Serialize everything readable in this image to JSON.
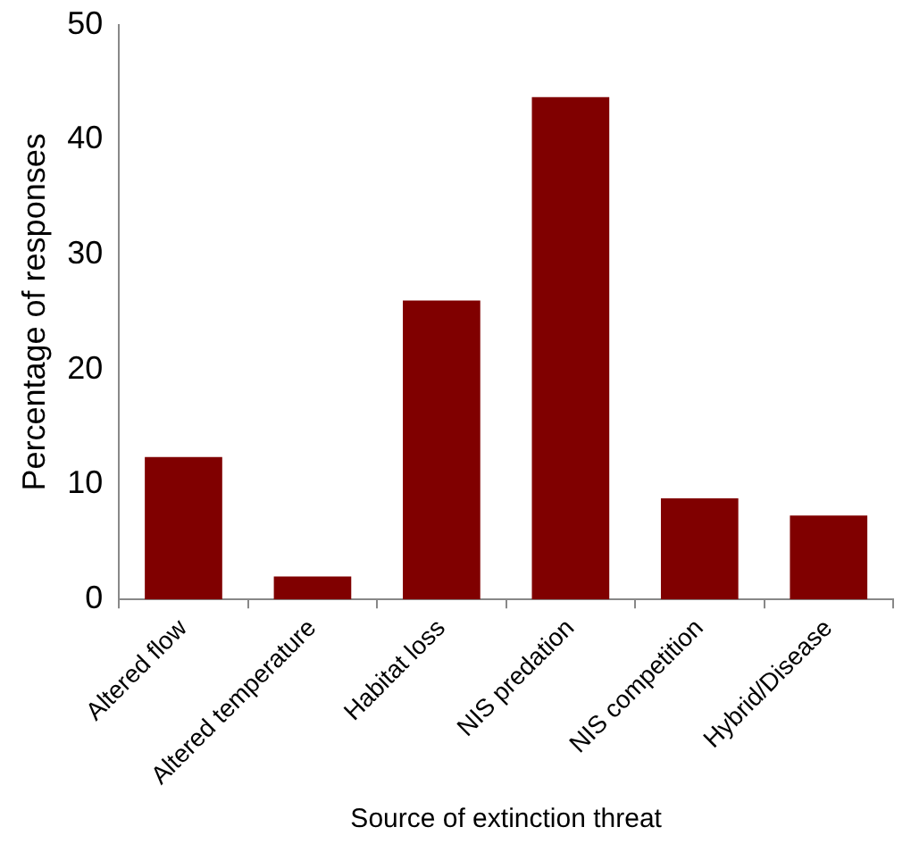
{
  "chart_data": {
    "type": "bar",
    "xlabel": "Source of extinction threat",
    "ylabel": "Percentage of responses",
    "categories": [
      "Altered flow",
      "Altered temperature",
      "Habitat loss",
      "NIS predation",
      "NIS competition",
      "Hybrid/Disease"
    ],
    "values": [
      12.4,
      2.0,
      26.0,
      43.7,
      8.8,
      7.3
    ],
    "color": "#800000",
    "ylim": [
      0,
      50
    ],
    "yticks": [
      0,
      10,
      20,
      30,
      40,
      50
    ],
    "grid": false,
    "legend": false
  }
}
